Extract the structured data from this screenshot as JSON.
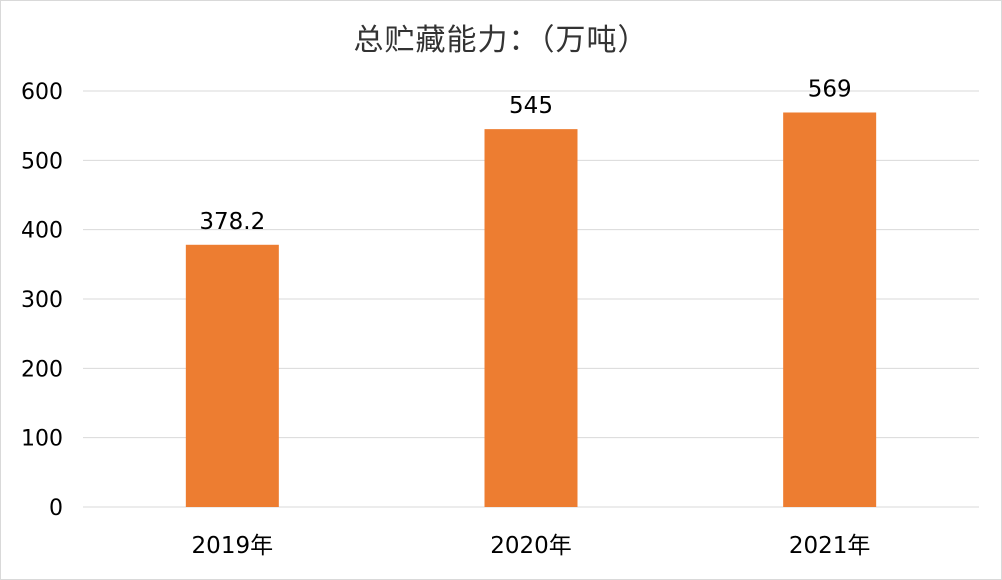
{
  "chart_data": {
    "type": "bar",
    "title": "总贮藏能力：（万吨）",
    "categories": [
      "2019年",
      "2020年",
      "2021年"
    ],
    "values": [
      378.2,
      545,
      569
    ],
    "value_labels": [
      "378.2",
      "545",
      "569"
    ],
    "ylim": [
      0,
      600
    ],
    "yticks": [
      0,
      100,
      200,
      300,
      400,
      500,
      600
    ],
    "xlabel": "",
    "ylabel": "",
    "grid": true,
    "legend": "none",
    "bar_color": "#ED7D31",
    "grid_color": "#D9D9D9"
  }
}
